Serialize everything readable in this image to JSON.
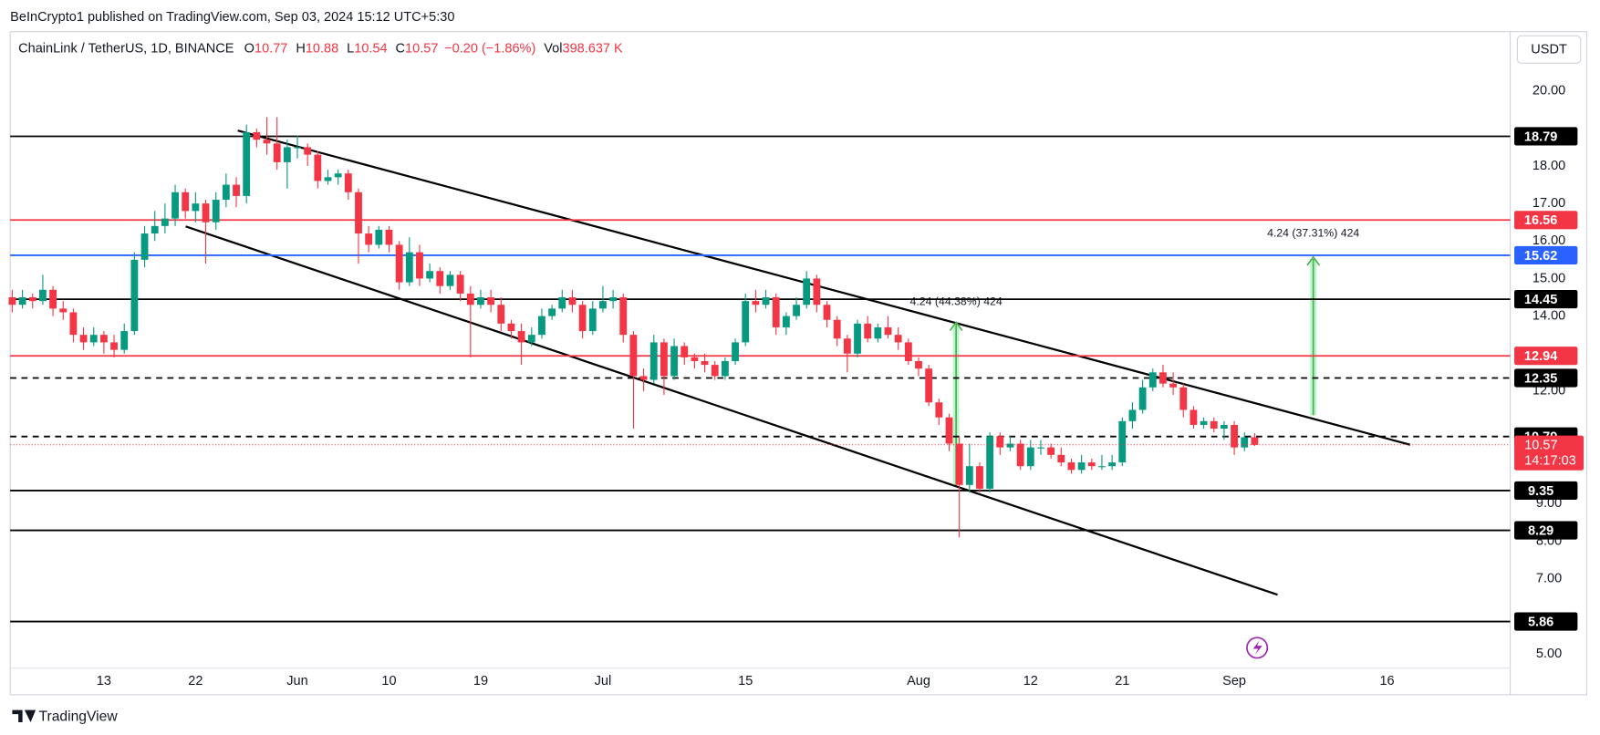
{
  "chart_data": {
    "type": "candlestick",
    "publisher": "BeInCrypto1 published on TradingView.com, Sep 03, 2024 15:12 UTC+5:30",
    "title": "ChainLink / TetherUS, 1D, BINANCE",
    "legend_values": [
      {
        "label": "O",
        "value": 10.77
      },
      {
        "label": "H",
        "value": 10.88
      },
      {
        "label": "L",
        "value": 10.54
      },
      {
        "label": "C",
        "value": 10.57
      }
    ],
    "change": "−0.20 (−1.86%)",
    "volume_label": "Vol",
    "volume": "398.637 K",
    "currency": "USDT",
    "countdown": "14:17:03",
    "brand": "TradingView",
    "up_color": "#089981",
    "down_color": "#f23645",
    "categories": [
      null,
      null,
      null,
      null,
      null,
      null,
      null,
      null,
      null,
      "13",
      null,
      null,
      null,
      null,
      null,
      null,
      null,
      null,
      "22",
      null,
      null,
      null,
      null,
      null,
      null,
      null,
      null,
      null,
      "Jun",
      null,
      null,
      null,
      null,
      null,
      null,
      null,
      null,
      "10",
      null,
      null,
      null,
      null,
      null,
      null,
      null,
      null,
      "19",
      null,
      null,
      null,
      null,
      null,
      null,
      null,
      null,
      null,
      null,
      null,
      "Jul",
      null,
      null,
      null,
      null,
      null,
      null,
      null,
      null,
      null,
      null,
      null,
      null,
      null,
      "15",
      null,
      null,
      null,
      null,
      null,
      null,
      null,
      null,
      null,
      null,
      null,
      null,
      null,
      null,
      null,
      null,
      "Aug",
      null,
      null,
      null,
      null,
      null,
      null,
      null,
      null,
      null,
      null,
      "12",
      null,
      null,
      null,
      null,
      null,
      null,
      null,
      null,
      "21",
      null,
      null,
      null,
      null,
      null,
      null,
      null,
      null,
      null,
      null,
      "Sep",
      null,
      null,
      null,
      null,
      null,
      null,
      null,
      null,
      null,
      null,
      null,
      null,
      null,
      null,
      "16",
      null,
      null,
      null,
      null,
      null,
      null,
      null,
      null,
      null,
      null,
      null
    ],
    "values": [
      [
        14.5,
        14.7,
        14.1,
        14.3
      ],
      [
        14.3,
        14.7,
        14.2,
        14.5
      ],
      [
        14.5,
        14.6,
        14.2,
        14.4
      ],
      [
        14.4,
        15.1,
        14.3,
        14.7
      ],
      [
        14.7,
        14.8,
        14.0,
        14.2
      ],
      [
        14.2,
        14.4,
        13.9,
        14.1
      ],
      [
        14.1,
        14.2,
        13.3,
        13.5
      ],
      [
        13.5,
        13.7,
        13.1,
        13.3
      ],
      [
        13.3,
        13.7,
        13.2,
        13.5
      ],
      [
        13.5,
        13.6,
        13.0,
        13.3
      ],
      [
        13.3,
        13.5,
        12.9,
        13.1
      ],
      [
        13.1,
        13.8,
        13.0,
        13.6
      ],
      [
        13.6,
        15.7,
        13.5,
        15.5
      ],
      [
        15.5,
        16.4,
        15.3,
        16.2
      ],
      [
        16.2,
        16.8,
        16.0,
        16.4
      ],
      [
        16.4,
        17.0,
        16.2,
        16.6
      ],
      [
        16.6,
        17.5,
        16.4,
        17.3
      ],
      [
        17.3,
        17.4,
        16.6,
        16.8
      ],
      [
        16.8,
        17.3,
        16.5,
        17.0
      ],
      [
        17.0,
        17.1,
        15.4,
        16.5
      ],
      [
        16.5,
        17.3,
        16.3,
        17.1
      ],
      [
        17.1,
        17.8,
        16.9,
        17.5
      ],
      [
        17.5,
        17.7,
        16.9,
        17.2
      ],
      [
        17.2,
        19.1,
        17.0,
        18.9
      ],
      [
        18.9,
        19.0,
        18.5,
        18.7
      ],
      [
        18.7,
        19.3,
        18.3,
        18.6
      ],
      [
        18.6,
        19.3,
        17.9,
        18.1
      ],
      [
        18.1,
        18.7,
        17.4,
        18.5
      ],
      [
        18.5,
        18.8,
        18.2,
        18.5
      ],
      [
        18.5,
        18.6,
        18.0,
        18.3
      ],
      [
        18.3,
        18.4,
        17.4,
        17.6
      ],
      [
        17.6,
        17.9,
        17.5,
        17.7
      ],
      [
        17.7,
        17.9,
        17.5,
        17.8
      ],
      [
        17.8,
        17.9,
        17.1,
        17.3
      ],
      [
        17.3,
        17.4,
        15.4,
        16.2
      ],
      [
        16.2,
        16.4,
        15.7,
        15.9
      ],
      [
        15.9,
        16.4,
        15.8,
        16.3
      ],
      [
        16.3,
        16.4,
        15.7,
        15.9
      ],
      [
        15.9,
        16.0,
        14.7,
        14.9
      ],
      [
        14.9,
        16.1,
        14.8,
        15.7
      ],
      [
        15.7,
        15.9,
        14.8,
        15.0
      ],
      [
        15.0,
        15.4,
        14.9,
        15.2
      ],
      [
        15.2,
        15.3,
        14.6,
        14.8
      ],
      [
        14.8,
        15.2,
        14.7,
        15.1
      ],
      [
        15.1,
        15.2,
        14.4,
        14.6
      ],
      [
        14.6,
        14.8,
        12.9,
        14.3
      ],
      [
        14.3,
        14.7,
        14.2,
        14.5
      ],
      [
        14.5,
        14.7,
        14.1,
        14.3
      ],
      [
        14.3,
        14.5,
        13.6,
        13.8
      ],
      [
        13.8,
        13.9,
        13.4,
        13.6
      ],
      [
        13.6,
        13.8,
        12.7,
        13.3
      ],
      [
        13.3,
        13.7,
        13.2,
        13.5
      ],
      [
        13.5,
        14.2,
        13.4,
        14.0
      ],
      [
        14.0,
        14.3,
        13.9,
        14.2
      ],
      [
        14.2,
        14.7,
        14.1,
        14.5
      ],
      [
        14.5,
        14.7,
        14.1,
        14.3
      ],
      [
        14.3,
        14.4,
        13.4,
        13.6
      ],
      [
        13.6,
        14.4,
        13.5,
        14.2
      ],
      [
        14.2,
        14.8,
        14.1,
        14.4
      ],
      [
        14.4,
        14.7,
        14.2,
        14.5
      ],
      [
        14.5,
        14.6,
        13.3,
        13.5
      ],
      [
        13.5,
        13.6,
        11.0,
        12.4
      ],
      [
        12.4,
        12.6,
        12.0,
        12.3
      ],
      [
        12.3,
        13.5,
        12.2,
        13.3
      ],
      [
        13.3,
        13.4,
        11.9,
        12.4
      ],
      [
        12.4,
        13.4,
        12.3,
        13.2
      ],
      [
        13.2,
        13.3,
        12.7,
        12.9
      ],
      [
        12.9,
        13.0,
        12.6,
        12.8
      ],
      [
        12.8,
        13.0,
        12.5,
        12.7
      ],
      [
        12.7,
        12.8,
        12.3,
        12.4
      ],
      [
        12.4,
        12.9,
        12.3,
        12.8
      ],
      [
        12.8,
        13.4,
        12.7,
        13.3
      ],
      [
        13.3,
        14.6,
        13.2,
        14.4
      ],
      [
        14.4,
        14.7,
        14.1,
        14.3
      ],
      [
        14.3,
        14.7,
        14.2,
        14.5
      ],
      [
        14.5,
        14.6,
        13.5,
        13.7
      ],
      [
        13.7,
        14.1,
        13.5,
        14.0
      ],
      [
        14.0,
        14.5,
        13.9,
        14.3
      ],
      [
        14.3,
        15.2,
        14.2,
        15.0
      ],
      [
        15.0,
        15.1,
        14.1,
        14.3
      ],
      [
        14.3,
        14.4,
        13.7,
        13.9
      ],
      [
        13.9,
        14.0,
        13.2,
        13.4
      ],
      [
        13.4,
        13.5,
        12.5,
        13.0
      ],
      [
        13.0,
        13.9,
        12.9,
        13.8
      ],
      [
        13.8,
        14.0,
        13.3,
        13.4
      ],
      [
        13.4,
        13.8,
        13.3,
        13.7
      ],
      [
        13.7,
        14.0,
        13.4,
        13.5
      ],
      [
        13.5,
        13.7,
        13.1,
        13.3
      ],
      [
        13.3,
        13.4,
        12.7,
        12.8
      ],
      [
        12.8,
        12.9,
        12.4,
        12.6
      ],
      [
        12.6,
        12.7,
        11.6,
        11.7
      ],
      [
        11.7,
        11.8,
        11.1,
        11.3
      ],
      [
        11.3,
        11.4,
        10.4,
        10.6
      ],
      [
        10.6,
        10.8,
        8.1,
        9.5
      ],
      [
        9.5,
        10.6,
        9.3,
        10.0
      ],
      [
        10.0,
        10.1,
        9.3,
        9.4
      ],
      [
        9.4,
        10.9,
        9.3,
        10.8
      ],
      [
        10.8,
        10.9,
        10.3,
        10.5
      ],
      [
        10.5,
        10.8,
        10.4,
        10.6
      ],
      [
        10.6,
        10.7,
        9.9,
        10.0
      ],
      [
        10.0,
        10.7,
        9.9,
        10.5
      ],
      [
        10.5,
        10.7,
        10.3,
        10.5
      ],
      [
        10.5,
        10.6,
        10.2,
        10.3
      ],
      [
        10.3,
        10.5,
        10.0,
        10.1
      ],
      [
        10.1,
        10.2,
        9.8,
        9.9
      ],
      [
        9.9,
        10.3,
        9.8,
        10.1
      ],
      [
        10.1,
        10.2,
        9.9,
        10.0
      ],
      [
        10.0,
        10.3,
        9.9,
        10.0
      ],
      [
        10.0,
        10.3,
        9.9,
        10.1
      ],
      [
        10.1,
        11.3,
        10.0,
        11.2
      ],
      [
        11.2,
        11.7,
        11.0,
        11.5
      ],
      [
        11.5,
        12.3,
        11.4,
        12.1
      ],
      [
        12.1,
        12.6,
        12.0,
        12.5
      ],
      [
        12.5,
        12.7,
        12.1,
        12.2
      ],
      [
        12.2,
        12.5,
        11.9,
        12.1
      ],
      [
        12.1,
        12.2,
        11.3,
        11.5
      ],
      [
        11.5,
        11.6,
        11.0,
        11.1
      ],
      [
        11.1,
        11.3,
        11.0,
        11.2
      ],
      [
        11.2,
        11.3,
        10.9,
        11.0
      ],
      [
        11.0,
        11.2,
        10.7,
        11.1
      ],
      [
        11.1,
        11.2,
        10.3,
        10.5
      ],
      [
        10.5,
        10.9,
        10.4,
        10.77
      ],
      [
        10.77,
        10.88,
        10.54,
        10.57
      ],
      null,
      null,
      null,
      null,
      null,
      null,
      null,
      null,
      null,
      null,
      null,
      null,
      null,
      null,
      null,
      null,
      null,
      null,
      null,
      null,
      null,
      null,
      null,
      null
    ],
    "ylim": [
      3.91,
      21.58
    ],
    "yticks": [
      {
        "value": 20,
        "label": "20.00"
      },
      {
        "value": 18,
        "label": "18.00"
      },
      {
        "value": 17,
        "label": "17.00"
      },
      {
        "value": 16,
        "label": "16.00"
      },
      {
        "value": 15,
        "label": "15.00"
      },
      {
        "value": 14,
        "label": "14.00"
      },
      {
        "value": 12,
        "label": "12.00"
      },
      {
        "value": 9,
        "label": "9.00"
      },
      {
        "value": 8,
        "label": "8.00"
      },
      {
        "value": 7,
        "label": "7.00"
      },
      {
        "value": 5,
        "label": "5.00"
      }
    ],
    "levels": [
      {
        "value": 18.79,
        "color": "#000000"
      },
      {
        "value": 16.56,
        "color": "#f23645"
      },
      {
        "value": 15.62,
        "color": "#2962ff"
      },
      {
        "value": 14.45,
        "color": "#000000"
      },
      {
        "value": 12.94,
        "color": "#f23645"
      },
      {
        "value": 12.35,
        "color": "#000000",
        "dashed": true
      },
      {
        "value": 10.79,
        "color": "#000000",
        "dashed": true
      },
      {
        "value": 9.35,
        "color": "#000000"
      },
      {
        "value": 8.29,
        "color": "#000000"
      },
      {
        "value": 5.86,
        "color": "#000000"
      }
    ],
    "annotations": [
      "4.24 (44.38%) 424",
      "4.24 (37.31%) 424"
    ]
  }
}
